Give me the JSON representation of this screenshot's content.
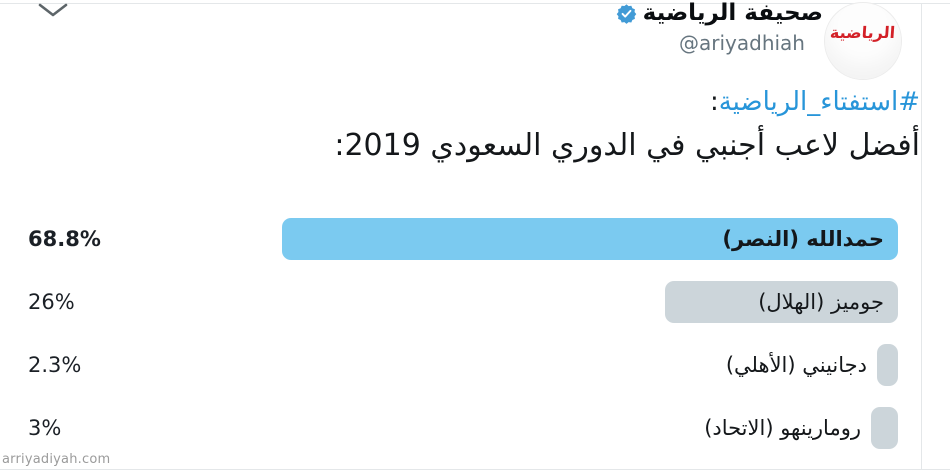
{
  "header": {
    "account_name": "صحيفة الرياضية",
    "handle": "@ariyadhiah",
    "avatar_logo_text": "الرياضية",
    "verified": true
  },
  "tweet": {
    "hashtag": "#استفتاء_الرياضية",
    "hashtag_suffix": ":",
    "question": "أفضل لاعب أجنبي في الدوري السعودي 2019:"
  },
  "poll": {
    "options": [
      {
        "label": "حمدالله (النصر)",
        "percent_label": "68.8%",
        "value": 68.8,
        "winner": true
      },
      {
        "label": "جوميز (الهلال)",
        "percent_label": "26%",
        "value": 26,
        "winner": false
      },
      {
        "label": "دجانيني (الأهلي)",
        "percent_label": "2.3%",
        "value": 2.3,
        "winner": false
      },
      {
        "label": "رومارينهو (الاتحاد)",
        "percent_label": "3%",
        "value": 3,
        "winner": false
      }
    ]
  },
  "watermark": "arriyadiyah.com",
  "colors": {
    "winner_bar": "#7bcaf0",
    "other_bar": "#ccd5da",
    "hashtag_link": "#2795d9",
    "verified_badge": "#429bd6",
    "avatar_logo_red": "#d32027",
    "divider": "#e4e7e9",
    "handle_gray": "#66757f",
    "text_dark": "#14171a"
  },
  "chart_data": {
    "type": "bar",
    "orientation": "horizontal",
    "title": "أفضل لاعب أجنبي في الدوري السعودي 2019",
    "categories": [
      "حمدالله (النصر)",
      "جوميز (الهلال)",
      "دجانيني (الأهلي)",
      "رومارينهو (الاتحاد)"
    ],
    "values": [
      68.8,
      26,
      2.3,
      3
    ],
    "value_unit": "%",
    "xlim": [
      0,
      100
    ]
  }
}
